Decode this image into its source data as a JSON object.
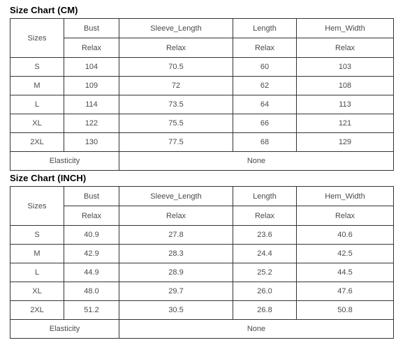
{
  "page": {
    "background": "#ffffff",
    "border_color": "#333333",
    "cell_text_color": "#4a4a4a",
    "title_text_color": "#000000"
  },
  "tables": [
    {
      "title": "Size Chart (CM)",
      "columns": [
        "Sizes",
        "Bust",
        "Sleeve_Length",
        "Length",
        "Hem_Width"
      ],
      "subheaders": [
        "Relax",
        "Relax",
        "Relax",
        "Relax"
      ],
      "rows": [
        [
          "S",
          "104",
          "70.5",
          "60",
          "103"
        ],
        [
          "M",
          "109",
          "72",
          "62",
          "108"
        ],
        [
          "L",
          "114",
          "73.5",
          "64",
          "113"
        ],
        [
          "XL",
          "122",
          "75.5",
          "66",
          "121"
        ],
        [
          "2XL",
          "130",
          "77.5",
          "68",
          "129"
        ]
      ],
      "footer": {
        "label": "Elasticity",
        "value": "None"
      }
    },
    {
      "title": "Size Chart (INCH)",
      "columns": [
        "Sizes",
        "Bust",
        "Sleeve_Length",
        "Length",
        "Hem_Width"
      ],
      "subheaders": [
        "Relax",
        "Relax",
        "Relax",
        "Relax"
      ],
      "rows": [
        [
          "S",
          "40.9",
          "27.8",
          "23.6",
          "40.6"
        ],
        [
          "M",
          "42.9",
          "28.3",
          "24.4",
          "42.5"
        ],
        [
          "L",
          "44.9",
          "28.9",
          "25.2",
          "44.5"
        ],
        [
          "XL",
          "48.0",
          "29.7",
          "26.0",
          "47.6"
        ],
        [
          "2XL",
          "51.2",
          "30.5",
          "26.8",
          "50.8"
        ]
      ],
      "footer": {
        "label": "Elasticity",
        "value": "None"
      }
    }
  ]
}
